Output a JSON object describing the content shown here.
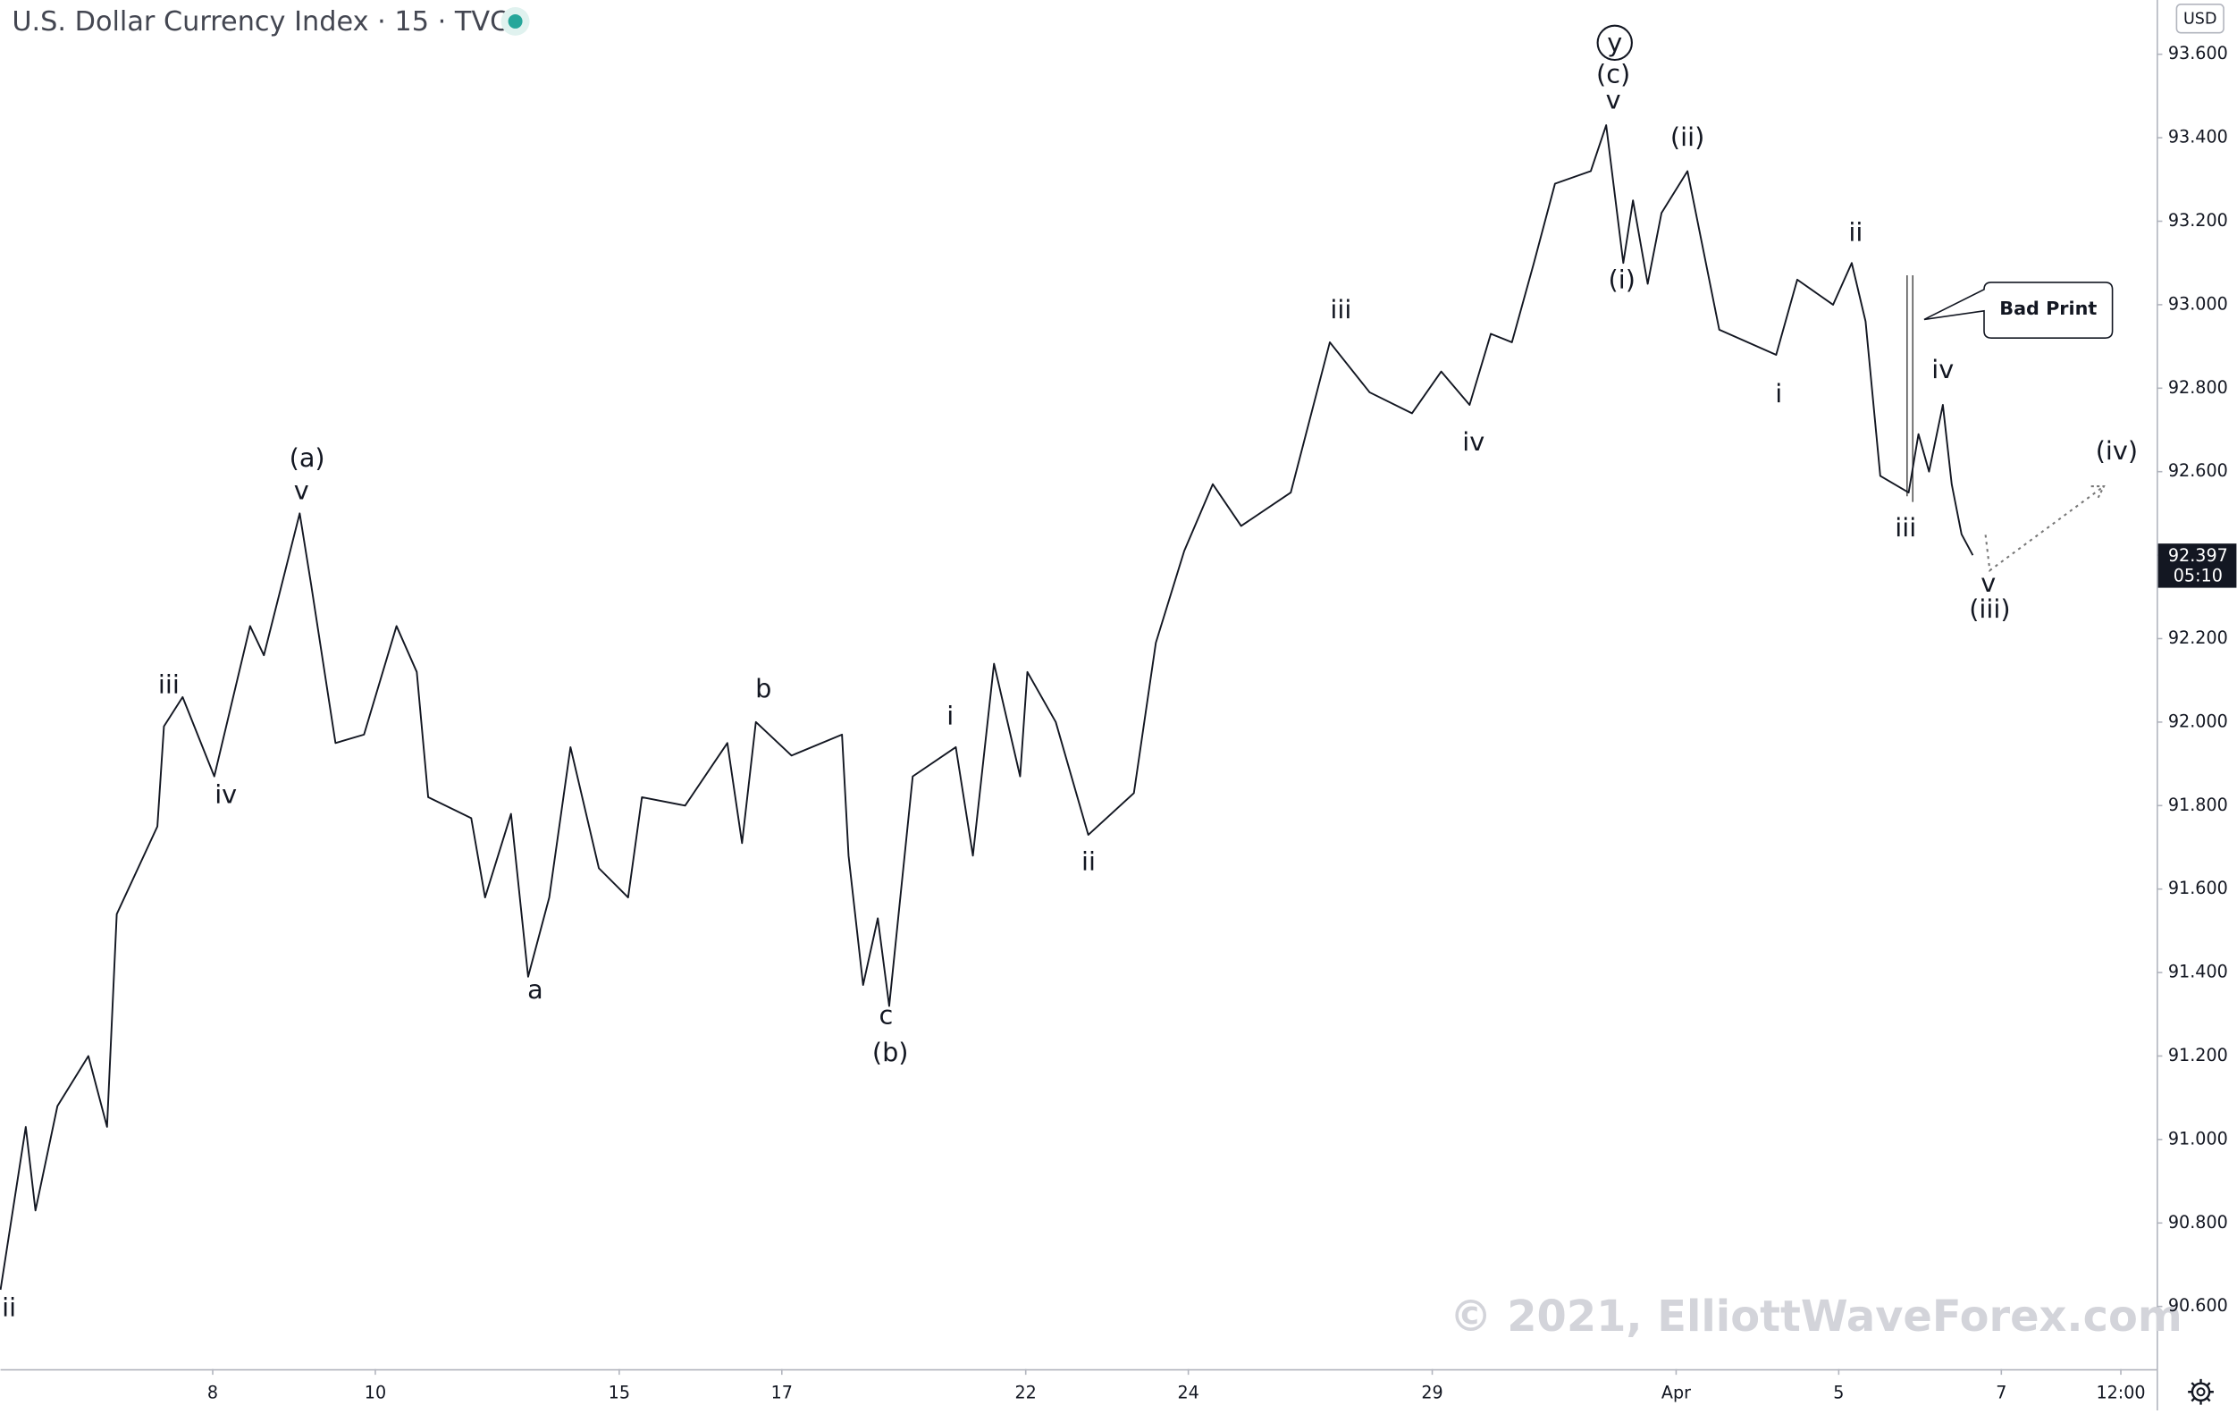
{
  "chart_data": {
    "type": "line",
    "title": "U.S. Dollar Currency Index · 15 · TVC",
    "currency": "USD",
    "color": "#131722",
    "x": [
      2.39,
      2.7,
      2.82,
      3.09,
      3.47,
      3.7,
      3.82,
      4.32,
      4.4,
      4.63,
      5.02,
      5.46,
      5.63,
      6.07,
      6.21,
      6.51,
      6.86,
      7.26,
      7.51,
      7.65,
      8.18,
      8.35,
      8.67,
      8.88,
      9.14,
      9.4,
      9.75,
      10.11,
      10.28,
      10.81,
      11.33,
      11.51,
      11.68,
      12.12,
      12.74,
      12.82,
      13.0,
      13.18,
      13.32,
      13.61,
      14.14,
      14.35,
      14.61,
      14.93,
      15.02,
      15.37,
      15.77,
      16.33,
      16.6,
      16.95,
      17.3,
      17.65,
      18.26,
      18.74,
      19.23,
      19.75,
      20.11,
      20.46,
      20.72,
      20.98,
      21.25,
      21.51,
      21.95,
      22.14,
      22.35,
      22.47,
      22.65,
      22.82,
      23.14,
      23.53,
      24.23,
      24.49,
      24.93,
      25.16,
      25.33,
      25.51,
      25.86,
      25.98,
      26.11,
      26.28,
      26.39,
      26.51,
      26.65
    ],
    "values": [
      90.64,
      91.03,
      90.83,
      91.08,
      91.2,
      91.03,
      91.54,
      91.75,
      91.99,
      92.06,
      91.87,
      92.23,
      92.16,
      92.5,
      92.33,
      91.95,
      91.97,
      92.23,
      92.12,
      91.82,
      91.77,
      91.58,
      91.78,
      91.39,
      91.58,
      91.94,
      91.65,
      91.58,
      91.82,
      91.8,
      91.95,
      91.71,
      92.0,
      91.92,
      91.97,
      91.68,
      91.37,
      91.53,
      91.32,
      91.87,
      91.94,
      91.68,
      92.14,
      91.87,
      92.12,
      92.0,
      91.73,
      91.83,
      92.19,
      92.41,
      92.57,
      92.47,
      92.55,
      92.91,
      92.79,
      92.74,
      92.84,
      92.76,
      92.93,
      92.91,
      93.1,
      93.29,
      93.32,
      93.43,
      93.1,
      93.25,
      93.05,
      93.22,
      93.32,
      92.94,
      92.88,
      93.06,
      93.0,
      93.1,
      92.96,
      92.59,
      92.55,
      92.69,
      92.6,
      92.76,
      92.57,
      92.45,
      92.4
    ],
    "xlim": [
      2.39,
      28.91
    ],
    "ylim": [
      90.45,
      93.73
    ],
    "xticks": [
      {
        "value": 5,
        "label": "8"
      },
      {
        "value": 7,
        "label": "10"
      },
      {
        "value": 10,
        "label": "15"
      },
      {
        "value": 12,
        "label": "17"
      },
      {
        "value": 15,
        "label": "22"
      },
      {
        "value": 17,
        "label": "24"
      },
      {
        "value": 20,
        "label": "29"
      },
      {
        "value": 23,
        "label": "Apr"
      },
      {
        "value": 25,
        "label": "5"
      },
      {
        "value": 27,
        "label": "7"
      },
      {
        "value": 28.47,
        "label": "12:00"
      }
    ],
    "yticks": [
      {
        "value": 90.6,
        "label": "90.600"
      },
      {
        "value": 90.8,
        "label": "90.800"
      },
      {
        "value": 91.0,
        "label": "91.000"
      },
      {
        "value": 91.2,
        "label": "91.200"
      },
      {
        "value": 91.4,
        "label": "91.400"
      },
      {
        "value": 91.6,
        "label": "91.600"
      },
      {
        "value": 91.8,
        "label": "91.800"
      },
      {
        "value": 92.0,
        "label": "92.000"
      },
      {
        "value": 92.2,
        "label": "92.200"
      },
      {
        "value": 92.4,
        "label": "92.400"
      },
      {
        "value": 92.6,
        "label": "92.600"
      },
      {
        "value": 92.8,
        "label": "92.800"
      },
      {
        "value": 93.0,
        "label": "93.000"
      },
      {
        "value": 93.2,
        "label": "93.200"
      },
      {
        "value": 93.4,
        "label": "93.400"
      },
      {
        "value": 93.6,
        "label": "93.600"
      }
    ],
    "last_price": {
      "value": 92.397,
      "label": "92.397"
    },
    "countdown": "05:10",
    "annotations": [
      "ii",
      "iii",
      "iv",
      "v",
      "(a)",
      "a",
      "b",
      "c",
      "(b)",
      "i",
      "ii",
      "iii",
      "iv",
      "y",
      "(c)",
      "v",
      "(ii)",
      "(i)",
      "i",
      "ii",
      "iv",
      "iii",
      "v",
      "(iii)",
      "(iv)"
    ],
    "callout": "Bad Print",
    "watermark": "© 2021, ElliottWaveForex.com"
  }
}
